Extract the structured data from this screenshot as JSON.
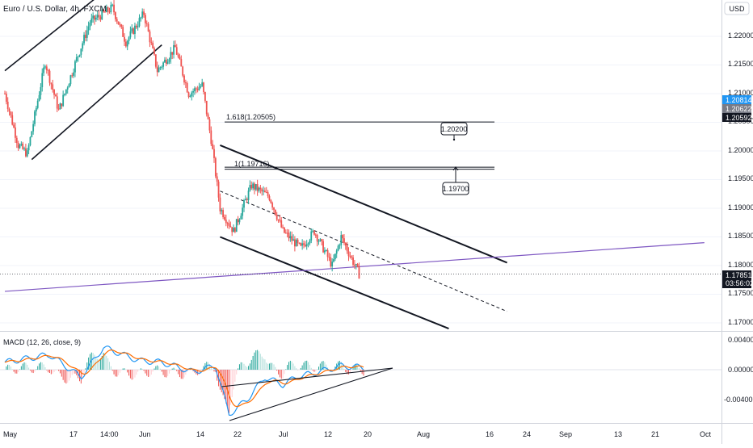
{
  "header": {
    "symbol_label": "Euro / U.S. Dollar, 4h, FXCM",
    "currency_button": "USD"
  },
  "price_axis": {
    "ticks": [
      "1.22000",
      "1.21500",
      "1.21000",
      "1.20500",
      "1.20000",
      "1.19500",
      "1.19000",
      "1.18500",
      "1.18000",
      "1.17500",
      "1.17000"
    ],
    "badges": [
      {
        "value": "1.20814",
        "color": "#2196f3"
      },
      {
        "value": "1.20622",
        "color": "#787b86"
      },
      {
        "value": "1.20592",
        "color": "#131722"
      }
    ],
    "last_price": "1.17851",
    "countdown": "03:56:02"
  },
  "macd_axis": {
    "ticks": [
      "0.00400",
      "0.00000",
      "-0.00400"
    ]
  },
  "macd_header": {
    "label": "MACD (12, 26, close, 9)"
  },
  "time_axis": {
    "labels": [
      "May",
      "17",
      "14:00",
      "Jun",
      "14",
      "22",
      "Jul",
      "12",
      "20",
      "Aug",
      "16",
      "24",
      "Sep",
      "13",
      "21",
      "Oct"
    ]
  },
  "annotations": {
    "fib_upper_label": "1.618(1.20505)",
    "fib_lower_label": "1(1.19716)",
    "target_upper": "1.20200",
    "target_lower": "1.19700"
  },
  "chart_data": {
    "type": "candlestick",
    "symbol": "EURUSD",
    "timeframe": "4h",
    "price_range": [
      1.1675,
      1.2265
    ],
    "bull_color": "#26a69a",
    "bear_color": "#ef5350",
    "candle_anchors": [
      {
        "date": "May 1",
        "price": 1.21
      },
      {
        "date": "May 4",
        "price": 1.201
      },
      {
        "date": "May 6",
        "price": 1.1995
      },
      {
        "date": "May 10",
        "price": 1.2155
      },
      {
        "date": "May 13",
        "price": 1.207
      },
      {
        "date": "May 17",
        "price": 1.216
      },
      {
        "date": "May 20",
        "price": 1.2225
      },
      {
        "date": "May 25",
        "price": 1.225
      },
      {
        "date": "May 28",
        "price": 1.219
      },
      {
        "date": "Jun 1",
        "price": 1.224
      },
      {
        "date": "Jun 4",
        "price": 1.214
      },
      {
        "date": "Jun 8",
        "price": 1.218
      },
      {
        "date": "Jun 11",
        "price": 1.21
      },
      {
        "date": "Jun 14",
        "price": 1.2115
      },
      {
        "date": "Jun 16",
        "price": 1.202
      },
      {
        "date": "Jun 18",
        "price": 1.19
      },
      {
        "date": "Jun 21",
        "price": 1.186
      },
      {
        "date": "Jun 25",
        "price": 1.194
      },
      {
        "date": "Jun 29",
        "price": 1.192
      },
      {
        "date": "Jul 2",
        "price": 1.186
      },
      {
        "date": "Jul 6",
        "price": 1.183
      },
      {
        "date": "Jul 9",
        "price": 1.186
      },
      {
        "date": "Jul 13",
        "price": 1.18
      },
      {
        "date": "Jul 15",
        "price": 1.185
      },
      {
        "date": "Jul 19",
        "price": 1.1785
      }
    ],
    "descending_channel": {
      "upper": [
        {
          "date": "Jun 18",
          "price": 1.201
        },
        {
          "date": "Aug 21",
          "price": 1.1805
        }
      ],
      "lower": [
        {
          "date": "Jun 18",
          "price": 1.185
        },
        {
          "date": "Aug 8",
          "price": 1.169
        }
      ],
      "midline": [
        {
          "date": "Jun 18",
          "price": 1.193
        },
        {
          "date": "Aug 21",
          "price": 1.172
        }
      ]
    },
    "ascending_channel": {
      "upper": [
        {
          "date": "May 1",
          "price": 1.214
        },
        {
          "date": "May 21",
          "price": 1.2265
        }
      ],
      "lower": [
        {
          "date": "May 7",
          "price": 1.1985
        },
        {
          "date": "Jun 5",
          "price": 1.2185
        }
      ]
    },
    "trendline": [
      {
        "date": "May 1",
        "price": 1.1755
      },
      {
        "date": "Oct 4",
        "price": 1.184
      }
    ],
    "fib_levels": [
      {
        "ratio": 1.618,
        "price": 1.20505
      },
      {
        "ratio": 1,
        "price": 1.19716
      }
    ],
    "targets": [
      1.202,
      1.197
    ],
    "macd": {
      "fast": 12,
      "slow": 26,
      "source": "close",
      "signal": 9,
      "range": [
        -0.007,
        0.0045
      ],
      "macd_line_color": "#2196f3",
      "signal_line_color": "#ff6d00"
    }
  }
}
